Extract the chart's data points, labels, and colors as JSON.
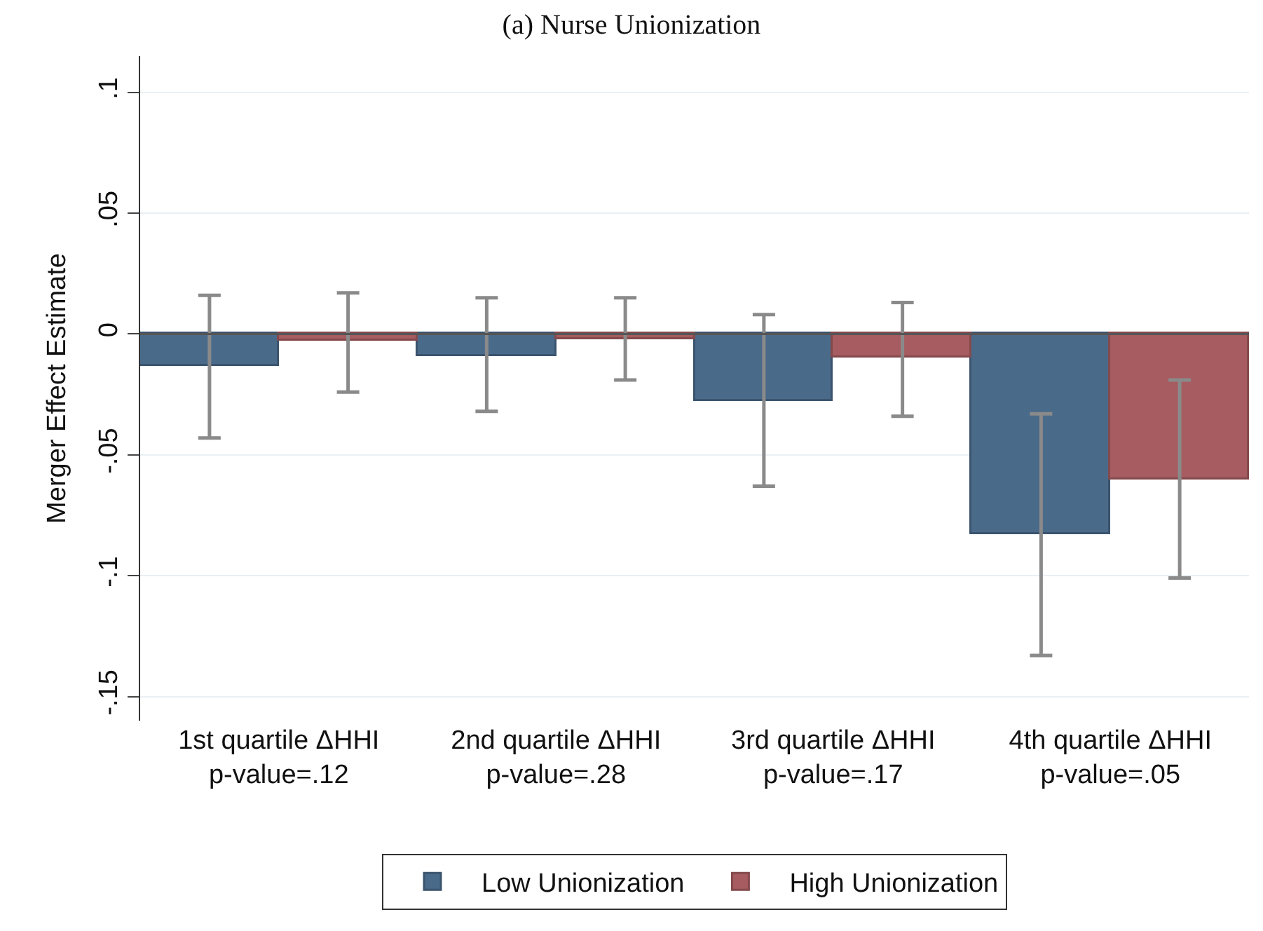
{
  "chart_data": {
    "type": "bar",
    "title": "(a) Nurse Unionization",
    "ylabel": "Merger Effect Estimate",
    "categories": [
      "1st quartile ΔHHI\np-value=.12",
      "2nd quartile ΔHHI\np-value=.28",
      "3rd quartile ΔHHI\np-value=.17",
      "4th quartile ΔHHI\np-value=.05"
    ],
    "series": [
      {
        "name": "Low Unionization",
        "color": "#4a6a8a",
        "values": [
          -0.013,
          -0.009,
          -0.028,
          -0.083
        ],
        "errors": [
          [
            -0.043,
            0.016
          ],
          [
            -0.032,
            0.015
          ],
          [
            -0.063,
            0.008
          ],
          [
            -0.133,
            -0.033
          ]
        ]
      },
      {
        "name": "High Unionization",
        "color": "#a65c60",
        "values": [
          -0.003,
          -0.002,
          -0.01,
          -0.06
        ],
        "errors": [
          [
            -0.024,
            0.017
          ],
          [
            -0.019,
            0.015
          ],
          [
            -0.034,
            0.013
          ],
          [
            -0.101,
            -0.019
          ]
        ]
      }
    ],
    "ylim": [
      -0.16,
      0.115
    ],
    "yticks": [
      {
        "value": 0.1,
        "label": ".1"
      },
      {
        "value": 0.05,
        "label": ".05"
      },
      {
        "value": 0,
        "label": "0"
      },
      {
        "value": -0.05,
        "label": "-.05"
      },
      {
        "value": -0.1,
        "label": "-.1"
      },
      {
        "value": -0.15,
        "label": "-.15"
      }
    ],
    "ref_lines": [
      {
        "axis": "y",
        "value": 0,
        "color": "#555555"
      }
    ],
    "grid": "y",
    "legend": "bottom"
  }
}
